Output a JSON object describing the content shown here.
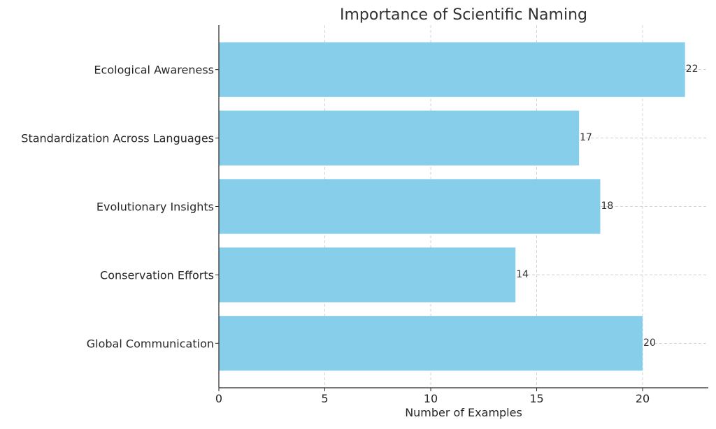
{
  "chart_data": {
    "type": "bar",
    "orientation": "horizontal",
    "title": "Importance of Scientific Naming",
    "xlabel": "Number of Examples",
    "ylabel": "",
    "categories": [
      "Global Communication",
      "Conservation Efforts",
      "Evolutionary Insights",
      "Standardization Across Languages",
      "Ecological Awareness"
    ],
    "values": [
      20,
      14,
      18,
      17,
      22
    ],
    "xlim": [
      0,
      23.1
    ],
    "xticks": [
      0,
      5,
      10,
      15,
      20
    ],
    "grid": true,
    "data_labels": true,
    "bar_color": "#87ceeb",
    "text_color": "#262626"
  }
}
